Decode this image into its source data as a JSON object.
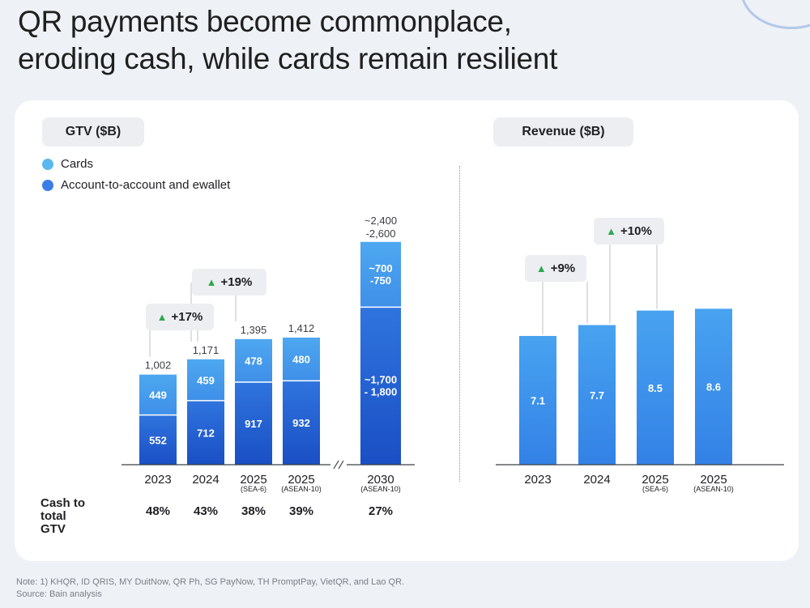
{
  "title_line1": "QR payments become commonplace,",
  "title_line2": "eroding cash, while cards remain resilient",
  "colors": {
    "cards_top": "#4ea8f0",
    "cards_bottom": "#3f8fe8",
    "a2a_top": "#2f74de",
    "a2a_bottom": "#1a4fc4",
    "revenue_top": "#48a3f0",
    "revenue_bottom": "#3381e6",
    "growth_arrow": "#2ea84f"
  },
  "legend": {
    "cards": "Cards",
    "a2a": "Account-to-account and ewallet"
  },
  "gtv_chart_label": "GTV ($B)",
  "revenue_chart_label": "Revenue ($B)",
  "cash_share": {
    "label_lines": [
      "Cash to",
      "total",
      "GTV"
    ],
    "values": [
      "48%",
      "43%",
      "38%",
      "39%",
      "27%"
    ]
  },
  "chart_data": [
    {
      "type": "bar",
      "title": "GTV ($B)",
      "stacked": true,
      "axis_break_before_index": 4,
      "categories": [
        "2023",
        "2024",
        "2025",
        "2025",
        "2030"
      ],
      "category_sublabels": [
        "",
        "",
        "(SEA-6)",
        "(ASEAN-10)",
        "(ASEAN-10)"
      ],
      "series": [
        {
          "name": "Account-to-account and ewallet",
          "values": [
            552,
            712,
            917,
            932,
            1750
          ],
          "labels": [
            "552",
            "712",
            "917",
            "932",
            "~1,700\n- 1,800"
          ]
        },
        {
          "name": "Cards",
          "values": [
            449,
            459,
            478,
            480,
            725
          ],
          "labels": [
            "449",
            "459",
            "478",
            "480",
            "~700\n-750"
          ]
        }
      ],
      "totals": [
        1002,
        1171,
        1395,
        1412,
        2500
      ],
      "total_labels": [
        "1,002",
        "1,171",
        "1,395",
        "1,412",
        "~2,400\n-2,600"
      ],
      "growth": [
        {
          "label": "+17%",
          "from": 0,
          "to": 1
        },
        {
          "label": "+19%",
          "from": 1,
          "to": 2
        }
      ]
    },
    {
      "type": "bar",
      "title": "Revenue ($B)",
      "categories": [
        "2023",
        "2024",
        "2025",
        "2025"
      ],
      "category_sublabels": [
        "",
        "",
        "(SEA-6)",
        "(ASEAN-10)"
      ],
      "values": [
        7.1,
        7.7,
        8.5,
        8.6
      ],
      "labels": [
        "7.1",
        "7.7",
        "8.5",
        "8.6"
      ],
      "growth": [
        {
          "label": "+9%",
          "from": 0,
          "to": 1
        },
        {
          "label": "+10%",
          "from": 1,
          "to": 2
        }
      ]
    }
  ],
  "footnote_note": "Note: 1) KHQR, ID QRIS, MY DuitNow, QR Ph, SG PayNow, TH PromptPay, VietQR, and Lao QR.",
  "footnote_source": "Source: Bain analysis"
}
